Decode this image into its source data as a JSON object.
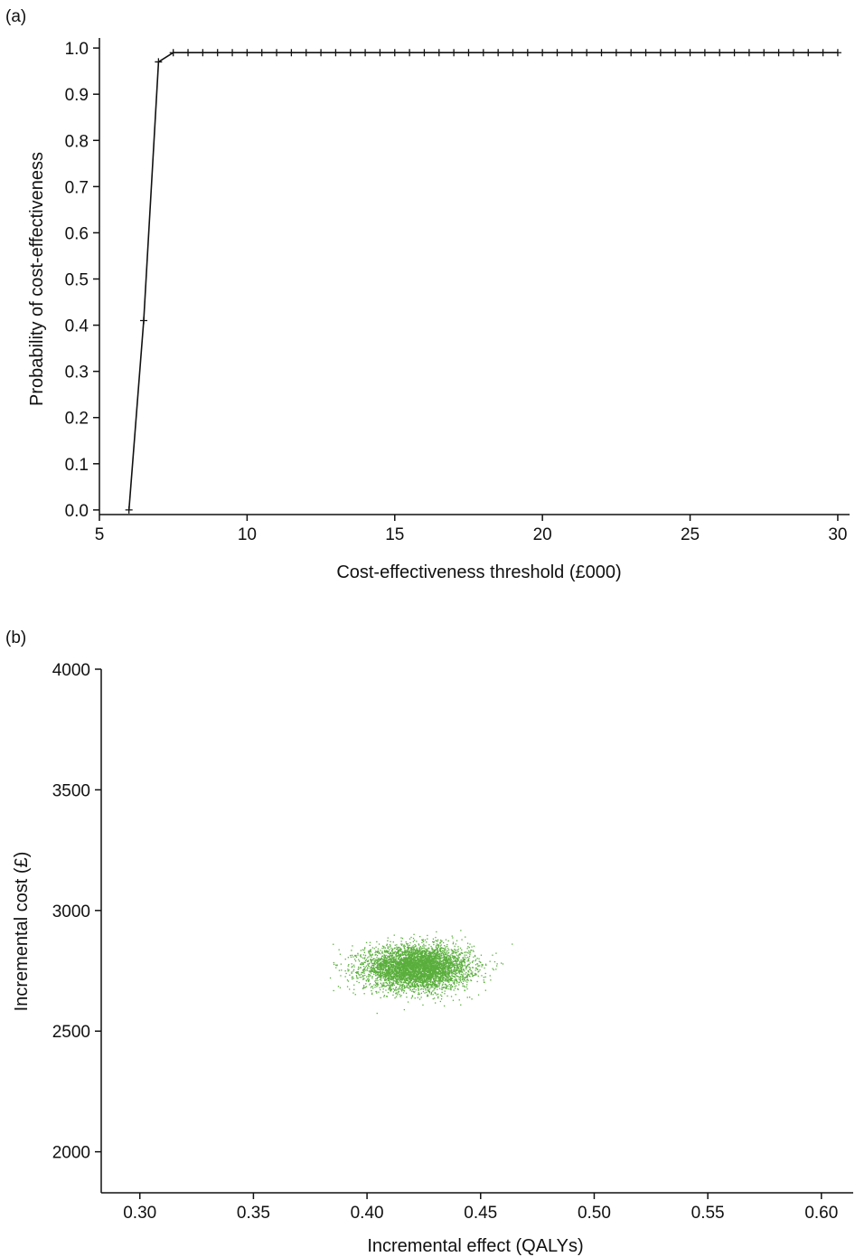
{
  "chart_data": [
    {
      "panel_label": "(a)",
      "type": "line",
      "xlabel": "Cost-effectiveness threshold (£000)",
      "ylabel": "Probability of cost-effectiveness",
      "xlim": [
        5,
        30.4
      ],
      "ylim": [
        -0.01,
        1.01
      ],
      "xticks": [
        "5",
        "10",
        "15",
        "20",
        "25",
        "30"
      ],
      "yticks": [
        "0.0",
        "0.1",
        "0.2",
        "0.3",
        "0.4",
        "0.5",
        "0.6",
        "0.7",
        "0.8",
        "0.9",
        "1.0"
      ],
      "grid": false,
      "marker": "+",
      "color": "#111111",
      "x": [
        6,
        6.5,
        7,
        7.5,
        8,
        8.5,
        9,
        9.5,
        10,
        10.5,
        11,
        11.5,
        12,
        12.5,
        13,
        13.5,
        14,
        14.5,
        15,
        15.5,
        16,
        16.5,
        17,
        17.5,
        18,
        18.5,
        19,
        19.5,
        20,
        20.5,
        21,
        21.5,
        22,
        22.5,
        23,
        23.5,
        24,
        24.5,
        25,
        25.5,
        26,
        26.5,
        27,
        27.5,
        28,
        28.5,
        29,
        29.5,
        30
      ],
      "y": [
        0.0,
        0.41,
        0.97,
        0.99,
        0.99,
        0.99,
        0.99,
        0.99,
        0.99,
        0.99,
        0.99,
        0.99,
        0.99,
        0.99,
        0.99,
        0.99,
        0.99,
        0.99,
        0.99,
        0.99,
        0.99,
        0.99,
        0.99,
        0.99,
        0.99,
        0.99,
        0.99,
        0.99,
        0.99,
        0.99,
        0.99,
        0.99,
        0.99,
        0.99,
        0.99,
        0.99,
        0.99,
        0.99,
        0.99,
        0.99,
        0.99,
        0.99,
        0.99,
        0.99,
        0.99,
        0.99,
        0.99,
        0.99,
        0.99
      ]
    },
    {
      "panel_label": "(b)",
      "type": "scatter",
      "xlabel": "Incremental effect (QALYs)",
      "ylabel": "Incremental cost (£)",
      "xlim": [
        0.283,
        0.614
      ],
      "ylim": [
        1830,
        4000
      ],
      "xticks": [
        "0.30",
        "0.35",
        "0.40",
        "0.45",
        "0.50",
        "0.55",
        "0.60"
      ],
      "yticks": [
        "2000",
        "2500",
        "3000",
        "3500",
        "4000"
      ],
      "grid": false,
      "color": "#5aaf3c",
      "cloud": {
        "n_points": 5000,
        "x_mean": 0.422,
        "x_sd": 0.0115,
        "y_mean": 2765,
        "y_sd": 45,
        "x_range": [
          0.383,
          0.468
        ],
        "y_range": [
          2550,
          2970
        ]
      }
    }
  ]
}
